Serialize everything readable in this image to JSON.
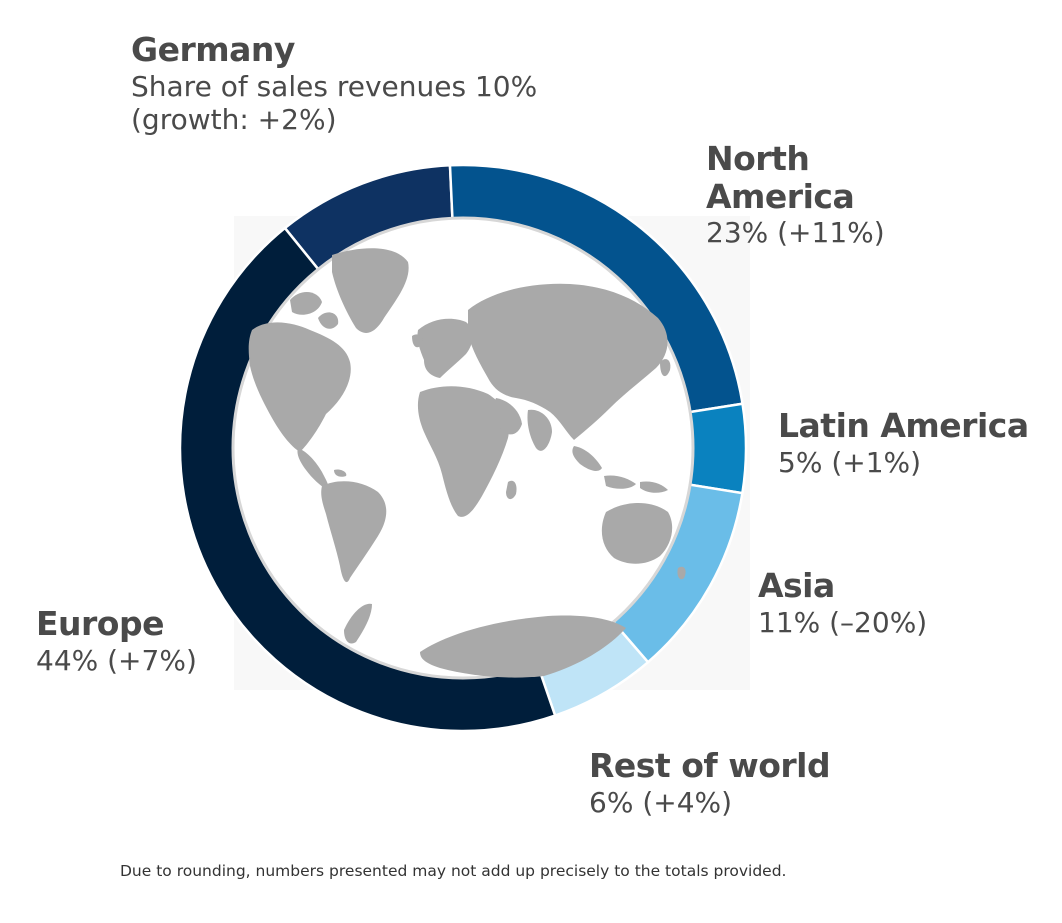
{
  "chart_data": {
    "type": "pie",
    "title": "",
    "categories": [
      "Germany",
      "North America",
      "Latin America",
      "Asia",
      "Rest of world",
      "Europe"
    ],
    "values": [
      10,
      23,
      5,
      11,
      6,
      44
    ],
    "growth": [
      "+2%",
      "+11%",
      "+1%",
      "–20%",
      "+4%",
      "+7%"
    ],
    "colors": [
      "#0e3262",
      "#03538e",
      "#0a82bf",
      "#6abde8",
      "#bfe4f7",
      "#001e3b"
    ],
    "labels": {
      "germany": {
        "name": "Germany",
        "line1": "Share of sales revenues 10%",
        "line2": "(growth: +2%)"
      },
      "north_america": {
        "name": "North America",
        "detail": "23% (+11%)"
      },
      "latin_america": {
        "name": "Latin America",
        "detail": "5% (+1%)"
      },
      "asia": {
        "name": "Asia",
        "detail": "11% (–20%)"
      },
      "rest_of_world": {
        "name": "Rest of world",
        "detail": "6% (+4%)"
      },
      "europe": {
        "name": "Europe",
        "detail": "44% (+7%)"
      }
    },
    "footnote": "Due to rounding, numbers presented may not add up precisely to the totals provided.",
    "center_image": "world-map"
  }
}
